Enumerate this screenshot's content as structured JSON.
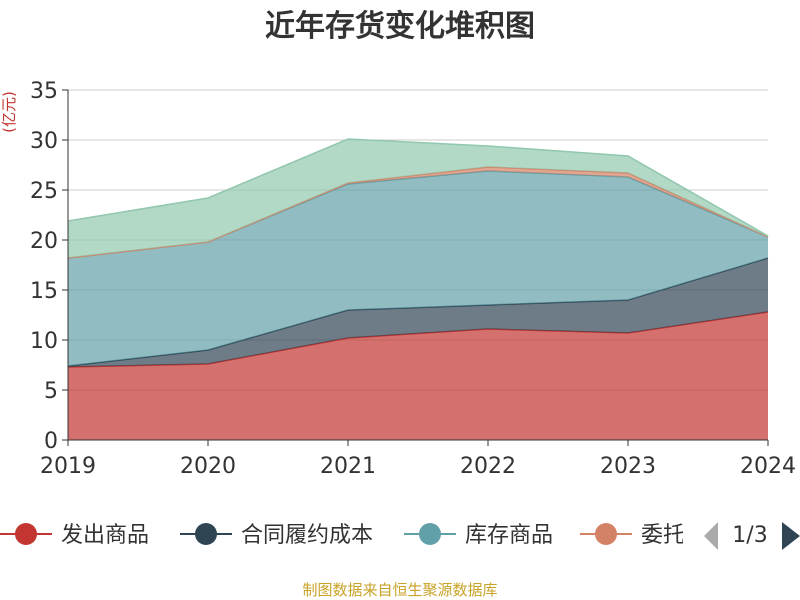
{
  "chart_data": {
    "type": "area",
    "title": "近年存货变化堆积图",
    "ylabel": "(亿元)",
    "x": [
      "2019",
      "2020",
      "2021",
      "2022",
      "2023",
      "2024"
    ],
    "ylim": [
      0,
      35
    ],
    "yticks": [
      0,
      5,
      10,
      15,
      20,
      25,
      30,
      35
    ],
    "stacked": true,
    "grid": true,
    "legend_position": "bottom",
    "series": [
      {
        "name": "发出商品",
        "color": "#c23531",
        "values": [
          7.3,
          7.6,
          10.2,
          11.1,
          10.7,
          12.8
        ]
      },
      {
        "name": "合同履约成本",
        "color": "#2f4554",
        "values": [
          0.1,
          1.4,
          2.8,
          2.4,
          3.3,
          5.4
        ]
      },
      {
        "name": "库存商品",
        "color": "#61a0a8",
        "values": [
          10.8,
          10.8,
          12.6,
          13.4,
          12.3,
          2.1
        ]
      },
      {
        "name": "委托",
        "color": "#d48265",
        "values": [
          0.0,
          0.0,
          0.1,
          0.4,
          0.4,
          0.0
        ]
      },
      {
        "name": "",
        "color": "#91c7ae",
        "values": [
          3.7,
          4.4,
          4.4,
          2.1,
          1.7,
          0.1
        ]
      }
    ]
  },
  "legend": {
    "visible_items": [
      {
        "label": "发出商品",
        "color": "#c23531"
      },
      {
        "label": "合同履约成本",
        "color": "#2f4554"
      },
      {
        "label": "库存商品",
        "color": "#61a0a8"
      },
      {
        "label": "委托",
        "color": "#d48265"
      }
    ],
    "page": "1/3",
    "prev_icon": "triangle-left-icon",
    "next_icon": "triangle-right-icon"
  },
  "source": "制图数据来自恒生聚源数据库"
}
